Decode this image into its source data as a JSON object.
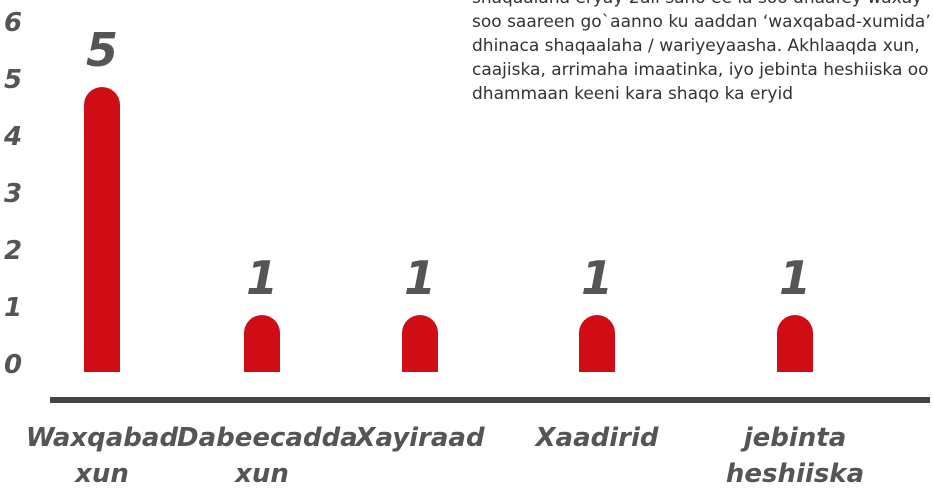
{
  "chart_data": {
    "type": "bar",
    "categories": [
      "Waxqabad xun",
      "Dabeecadda xun",
      "Xayiraad",
      "Xaadirid",
      "jebinta heshiiska"
    ],
    "values": [
      5,
      1,
      1,
      1,
      1
    ],
    "color": "#d00c15",
    "ylim": [
      0,
      6
    ],
    "yticks": [
      0,
      1,
      2,
      3,
      4,
      5,
      6
    ],
    "annotation": "shaqaalaha eryay 2dii sano ee la soo dhaafey waxay soo saareen go`aanno ku aaddan ‘waxqabad-xumida’ dhinaca shaqaalaha / wariyeyaasha. Akhlaaqda xun, caajiska, arrimaha imaatinka, iyo jebinta heshiiska oo dhammaan keeni kara shaqo ka eryid"
  }
}
